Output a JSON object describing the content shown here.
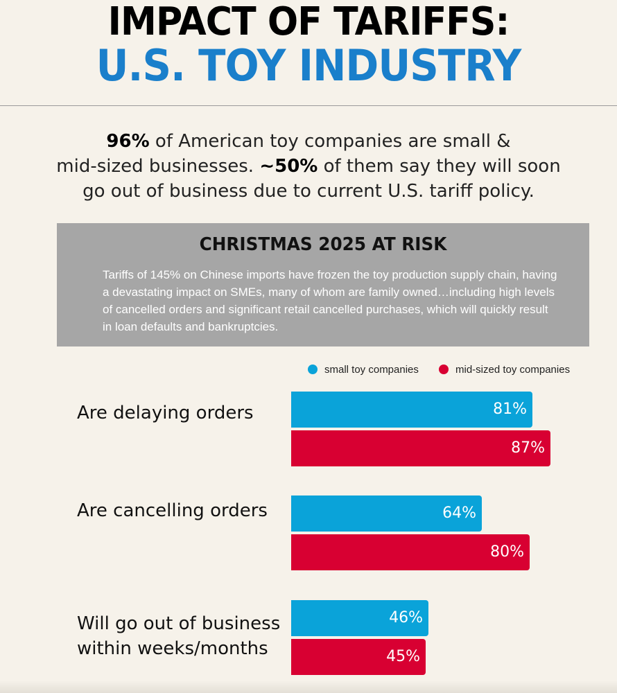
{
  "header": {
    "title_line1": "IMPACT OF TARIFFS:",
    "title_line2": "U.S. TOY INDUSTRY"
  },
  "intro": {
    "stat1": "96%",
    "text1": " of American toy companies are small &",
    "text2": "mid-sized businesses. ",
    "stat2": "~50%",
    "text3": " of them say they will soon",
    "text4": "go out of business due to current U.S. tariff policy."
  },
  "risk_box": {
    "title": "CHRISTMAS 2025 AT RISK",
    "body": "Tariffs of 145% on Chinese imports have frozen the toy production supply chain, having a devastating impact on SMEs, many of whom are family owned…including high levels of cancelled orders and significant retail cancelled purchases, which will quickly result in loan defaults and bankruptcies."
  },
  "colors": {
    "title_blue": "#1a7fcb",
    "small": "#0aa3d9",
    "mid": "#d80032",
    "box_gray": "#a6a6a6"
  },
  "chart_data": {
    "type": "bar",
    "orientation": "horizontal",
    "categories": [
      "Are delaying orders",
      "Are cancelling orders",
      "Will go out of business within weeks/months"
    ],
    "category_lines": [
      [
        "Are delaying orders"
      ],
      [
        "Are cancelling orders"
      ],
      [
        "Will go out of business",
        "within weeks/months"
      ]
    ],
    "series": [
      {
        "name": "small toy companies",
        "values": [
          81,
          64,
          46
        ],
        "labels": [
          "81%",
          "64%",
          "46%"
        ],
        "color": "#0aa3d9"
      },
      {
        "name": "mid-sized toy companies",
        "values": [
          87,
          80,
          45
        ],
        "labels": [
          "87%",
          "80%",
          "45%"
        ],
        "color": "#d80032"
      }
    ],
    "legend_position": "top-right",
    "xlim": [
      0,
      100
    ]
  }
}
